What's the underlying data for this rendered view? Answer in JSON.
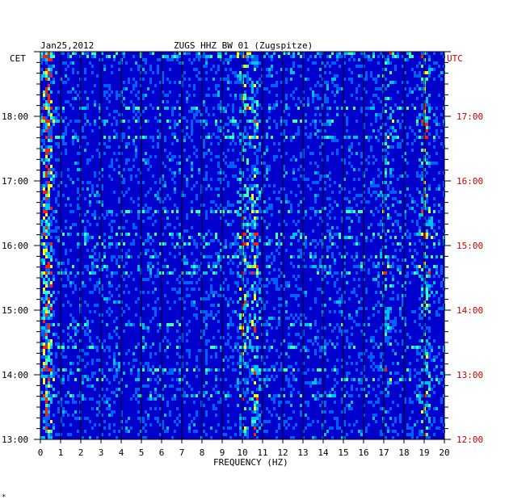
{
  "header": {
    "date": "Jan25,2012",
    "station": "ZUGS HHZ BW 01 (Zugspitze)",
    "left_tz": "CET",
    "right_tz": "UTC"
  },
  "footer": {
    "mark": "*"
  },
  "colors": {
    "background": "#0000cc",
    "grid": "#000000",
    "utc_labels": "#cc0000"
  },
  "chart_data": {
    "type": "heatmap",
    "title": "ZUGS HHZ BW 01 (Zugspitze)",
    "xlabel": "FREQUENCY (HZ)",
    "xlim": [
      0,
      20
    ],
    "x_ticks": [
      "0",
      "1",
      "2",
      "3",
      "4",
      "5",
      "6",
      "7",
      "8",
      "9",
      "10",
      "11",
      "12",
      "13",
      "14",
      "15",
      "16",
      "17",
      "18",
      "19",
      "20"
    ],
    "ylim_cet_hours": [
      13,
      19
    ],
    "y_ticks_left": [
      "13:00",
      "14:00",
      "15:00",
      "16:00",
      "17:00",
      "18:00"
    ],
    "y_ticks_right": [
      "12:00",
      "13:00",
      "14:00",
      "15:00",
      "16:00",
      "17:00"
    ],
    "y_ticks_values": [
      13,
      14,
      15,
      16,
      17,
      18
    ],
    "grid": true,
    "colormap": "blue-cyan-yellow-red",
    "energy_bands_hz": [
      {
        "freq": 0.3,
        "level": "high"
      },
      {
        "freq": 10.6,
        "level": "medium"
      },
      {
        "freq": 10.0,
        "level": "medium"
      },
      {
        "freq": 19.0,
        "level": "medium"
      },
      {
        "freq": 17.1,
        "level": "low"
      }
    ]
  }
}
